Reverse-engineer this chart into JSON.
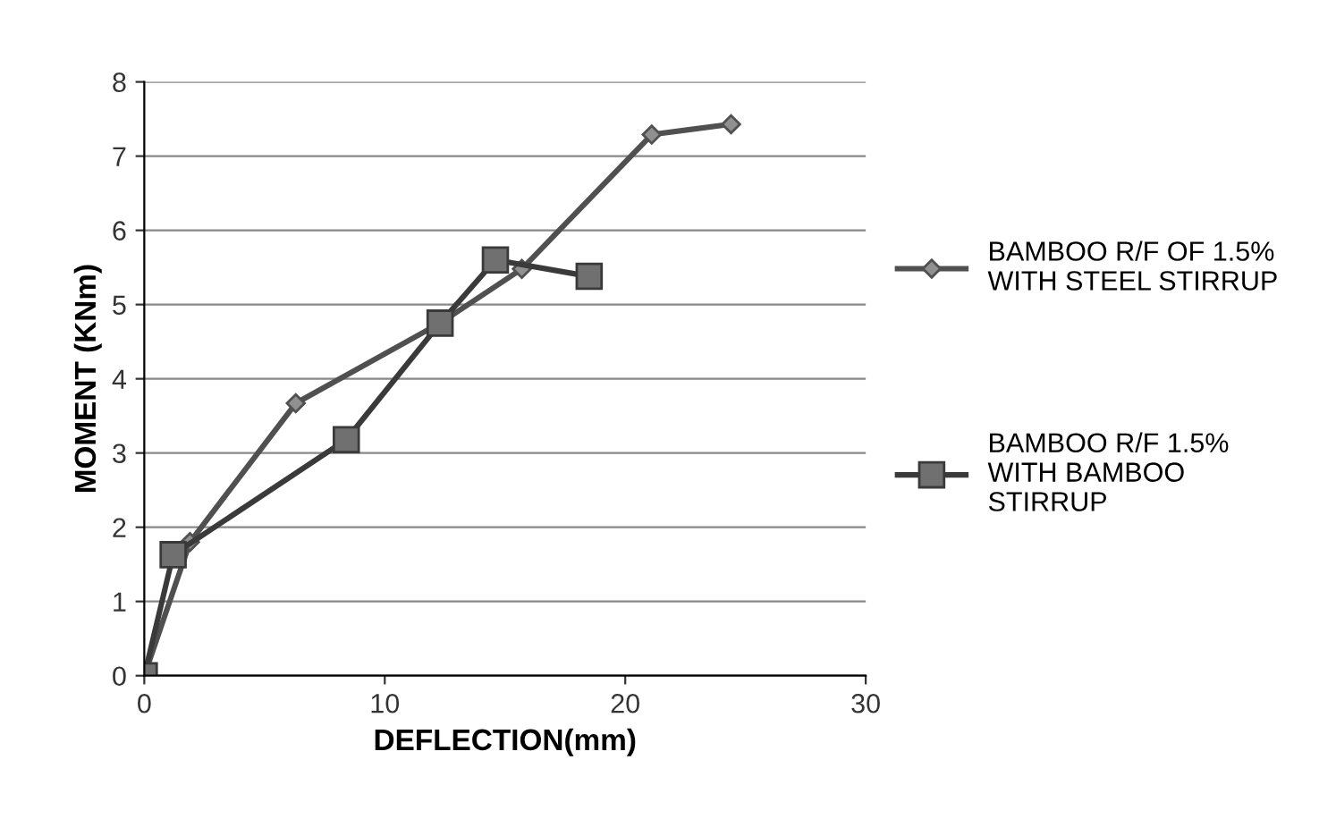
{
  "chart_data": {
    "type": "line",
    "xlabel": "DEFLECTION(mm)",
    "ylabel": "MOMENT (KNm)",
    "xlim": [
      0,
      30
    ],
    "xticks": [
      0,
      10,
      20,
      30
    ],
    "ylim": [
      0,
      8
    ],
    "yticks": [
      0,
      1,
      2,
      3,
      4,
      5,
      6,
      7,
      8
    ],
    "grid": "y",
    "legend": "right",
    "series": [
      {
        "name": "BAMBOO R/F OF 1.5%\nWITH STEEL STIRRUP",
        "color": "#505050",
        "marker": "diamond",
        "x": [
          0,
          1.9,
          6.3,
          12.3,
          15.7,
          21.1,
          24.4
        ],
        "values": [
          0,
          1.8,
          3.67,
          4.75,
          5.48,
          7.29,
          7.43
        ]
      },
      {
        "name": "BAMBOO R/F 1.5%\nWITH BAMBOO\nSTIRRUP",
        "color": "#3a3a3a",
        "marker": "square",
        "x": [
          0,
          1.2,
          8.4,
          12.3,
          14.6,
          18.5
        ],
        "values": [
          0,
          1.63,
          3.18,
          4.75,
          5.6,
          5.38
        ]
      }
    ]
  }
}
